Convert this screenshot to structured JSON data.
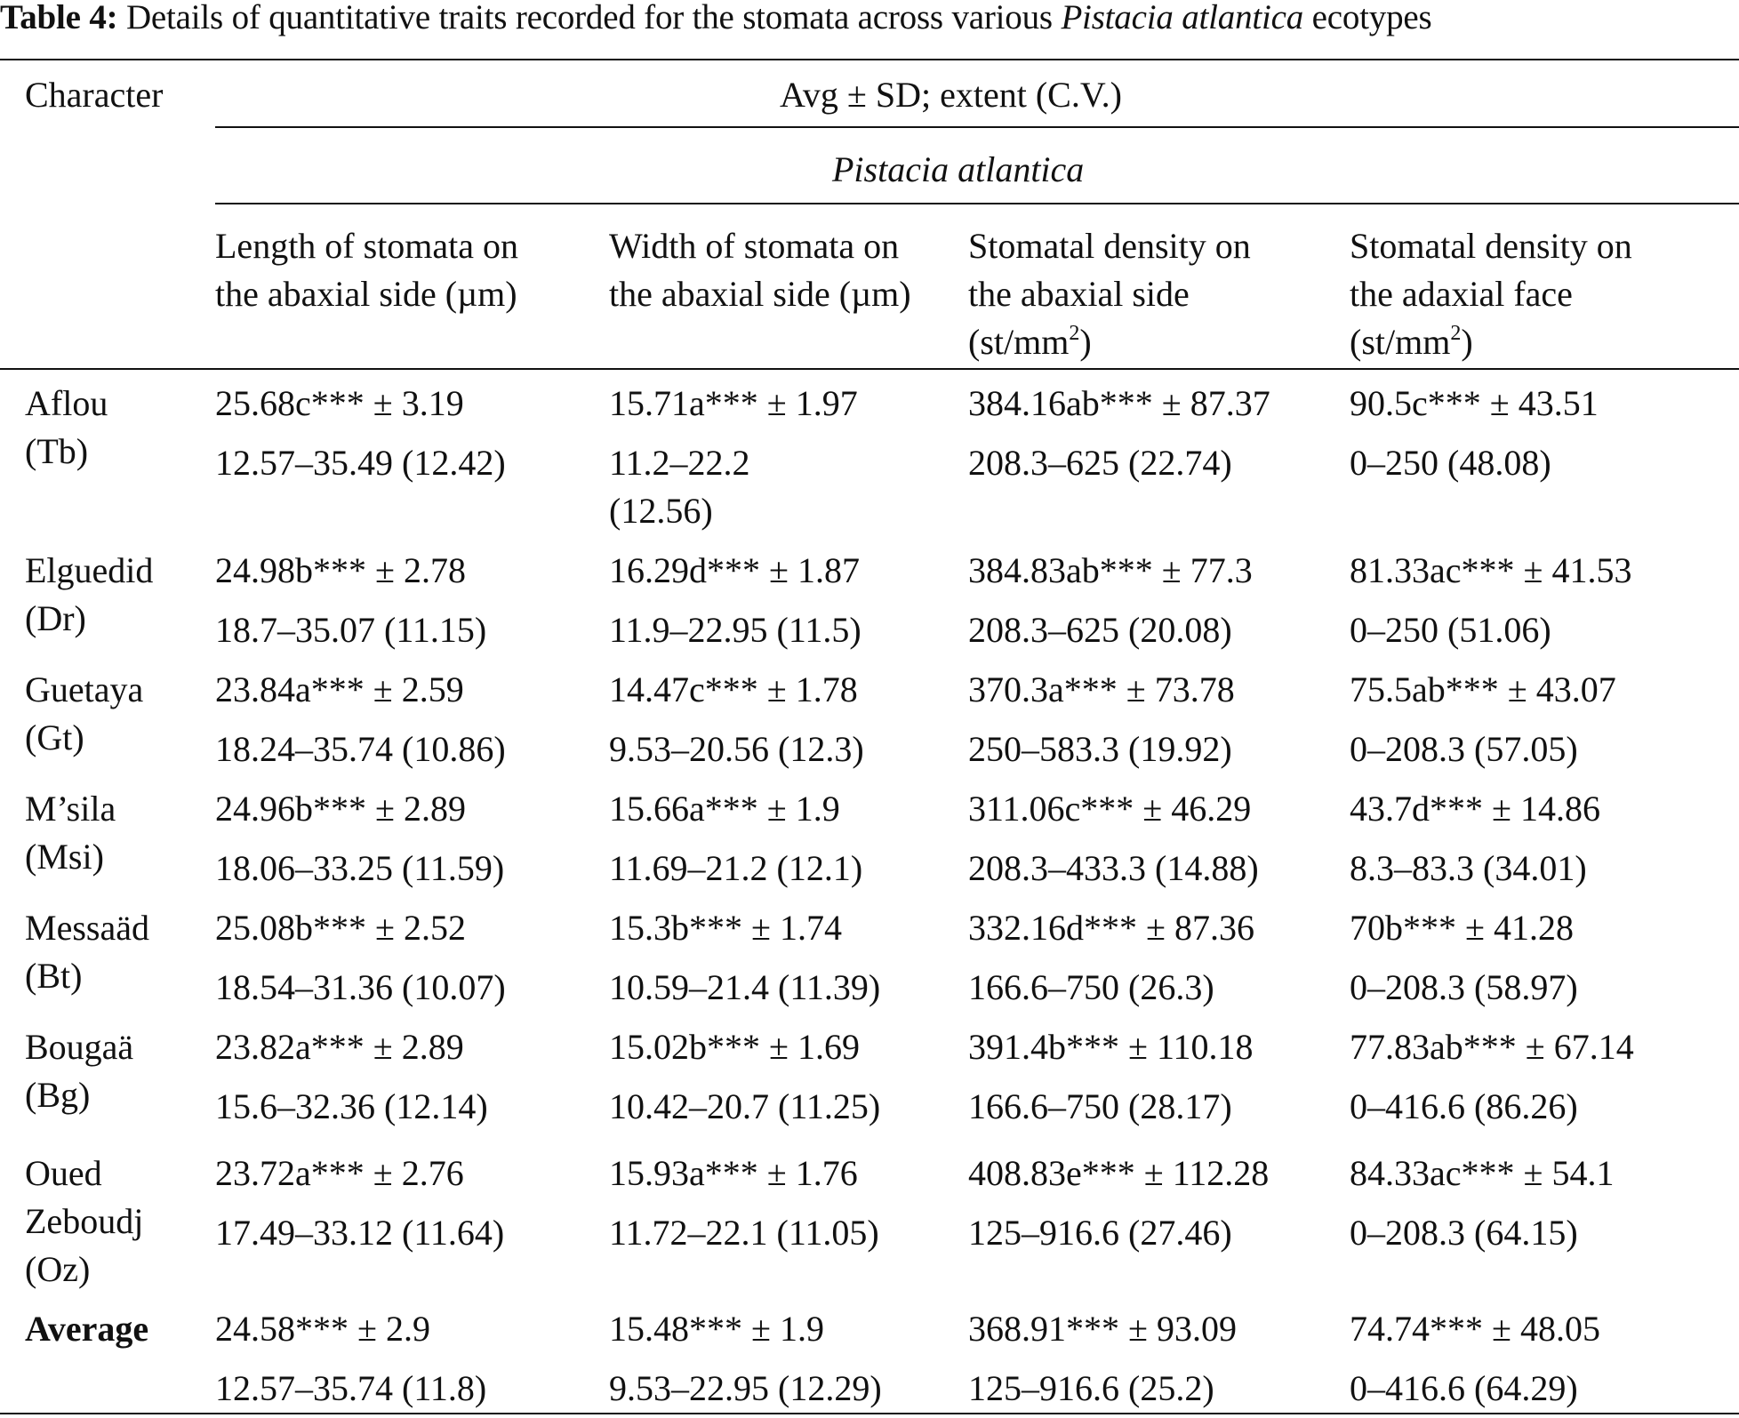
{
  "caption": {
    "label": "Table 4:",
    "text_before": "Details of quantitative traits recorded for the stomata across various",
    "species": "Pistacia atlantica",
    "text_after": "ecotypes"
  },
  "header": {
    "character": "Character",
    "span_title": "Avg ± SD; extent (C.V.)",
    "species": "Pistacia atlantica",
    "columns": [
      {
        "line1": "Length of stomata on",
        "line2": "the abaxial side (µm)",
        "line3": ""
      },
      {
        "line1": "Width of stomata on",
        "line2": "the abaxial side (µm)",
        "line3": ""
      },
      {
        "line1": "Stomatal density on",
        "line2": "the abaxial side",
        "line3": "(st/mm",
        "sup": "2",
        "close": ")"
      },
      {
        "line1": "Stomatal density on",
        "line2": "the adaxial face",
        "line3": "(st/mm",
        "sup": "2",
        "close": ")"
      }
    ]
  },
  "rows": [
    {
      "name1": "Aflou",
      "name2": "(Tb)",
      "name3": "",
      "c1a": "25.68c*** ± 3.19",
      "c1b": "12.57–35.49 (12.42)",
      "c2a": "15.71a*** ± 1.97",
      "c2b": "11.2–22.2",
      "c2c": "(12.56)",
      "c3a": "384.16ab*** ± 87.37",
      "c3b": "208.3–625 (22.74)",
      "c4a": "90.5c*** ± 43.51",
      "c4b": "0–250 (48.08)"
    },
    {
      "name1": "Elguedid",
      "name2": "(Dr)",
      "name3": "",
      "c1a": "24.98b*** ± 2.78",
      "c1b": "18.7–35.07 (11.15)",
      "c2a": "16.29d*** ± 1.87",
      "c2b": "11.9–22.95 (11.5)",
      "c3a": "384.83ab*** ± 77.3",
      "c3b": "208.3–625 (20.08)",
      "c4a": "81.33ac*** ± 41.53",
      "c4b": "0–250 (51.06)"
    },
    {
      "name1": "Guetaya",
      "name2": "(Gt)",
      "name3": "",
      "c1a": "23.84a*** ± 2.59",
      "c1b": "18.24–35.74 (10.86)",
      "c2a": "14.47c*** ± 1.78",
      "c2b": "9.53–20.56 (12.3)",
      "c3a": "370.3a*** ± 73.78",
      "c3b": "250–583.3 (19.92)",
      "c4a": "75.5ab*** ± 43.07",
      "c4b": "0–208.3 (57.05)"
    },
    {
      "name1": "M’sila",
      "name2": "(Msi)",
      "name3": "",
      "c1a": "24.96b*** ± 2.89",
      "c1b": "18.06–33.25 (11.59)",
      "c2a": "15.66a*** ± 1.9",
      "c2b": "11.69–21.2 (12.1)",
      "c3a": "311.06c*** ± 46.29",
      "c3b": "208.3–433.3 (14.88)",
      "c4a": "43.7d*** ± 14.86",
      "c4b": "8.3–83.3 (34.01)"
    },
    {
      "name1": "Messaäd",
      "name2": "(Bt)",
      "name3": "",
      "c1a": "25.08b*** ± 2.52",
      "c1b": "18.54–31.36 (10.07)",
      "c2a": "15.3b*** ± 1.74",
      "c2b": "10.59–21.4 (11.39)",
      "c3a": "332.16d*** ± 87.36",
      "c3b": "166.6–750 (26.3)",
      "c4a": "70b*** ± 41.28",
      "c4b": "0–208.3 (58.97)"
    },
    {
      "name1": "Bougaä",
      "name2": "(Bg)",
      "name3": "",
      "c1a": "23.82a*** ± 2.89",
      "c1b": "15.6–32.36 (12.14)",
      "c2a": "15.02b*** ± 1.69",
      "c2b": "10.42–20.7 (11.25)",
      "c3a": "391.4b*** ± 110.18",
      "c3b": "166.6–750 (28.17)",
      "c4a": "77.83ab*** ± 67.14",
      "c4b": "0–416.6 (86.26)"
    },
    {
      "name1": "Oued",
      "name2": "Zeboudj",
      "name3": "(Oz)",
      "c1a": "23.72a*** ± 2.76",
      "c1b": "17.49–33.12 (11.64)",
      "c2a": "15.93a*** ± 1.76",
      "c2b": "11.72–22.1 (11.05)",
      "c3a": "408.83e*** ± 112.28",
      "c3b": "125–916.6 (27.46)",
      "c4a": "84.33ac*** ± 54.1",
      "c4b": "0–208.3 (64.15)"
    },
    {
      "name1": "Average",
      "name2": "",
      "name3": "",
      "c1a": "24.58*** ± 2.9",
      "c1b": "12.57–35.74 (11.8)",
      "c2a": "15.48*** ± 1.9",
      "c2b": "9.53–22.95 (12.29)",
      "c3a": "368.91*** ± 93.09",
      "c3b": "125–916.6 (25.2)",
      "c4a": "74.74*** ± 48.05",
      "c4b": "0–416.6 (64.29)"
    }
  ]
}
